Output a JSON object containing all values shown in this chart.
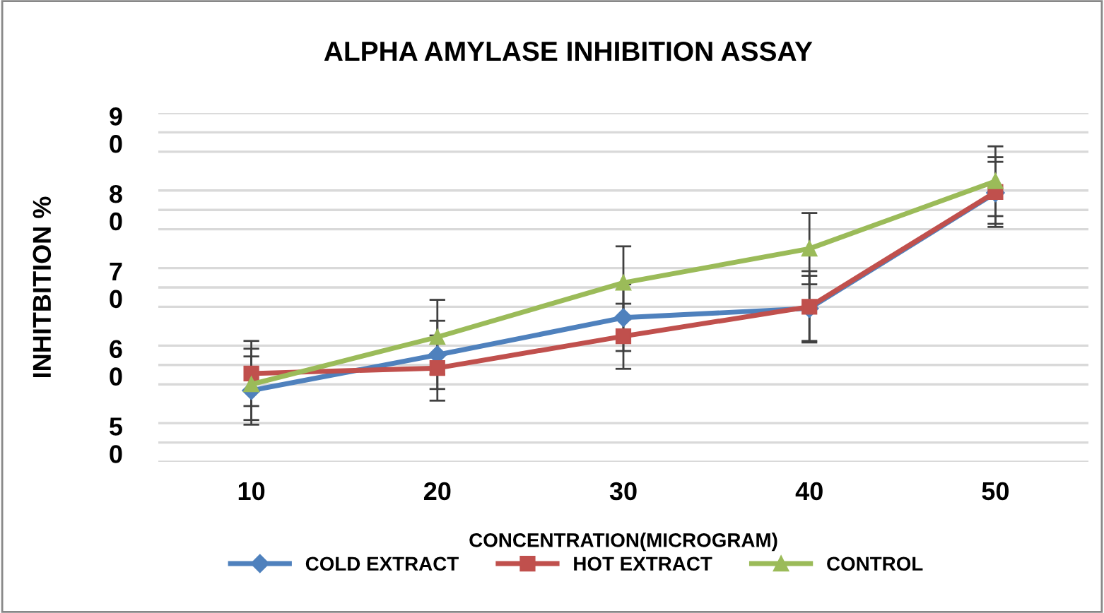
{
  "chart_data": {
    "type": "line",
    "title": "ALPHA AMYLASE INHIBITION ASSAY",
    "xlabel": "CONCENTRATION(MICROGRAM)",
    "ylabel": "INHITBITION %",
    "categories": [
      "10",
      "20",
      "30",
      "40",
      "50"
    ],
    "ylim": [
      47.5,
      92.5
    ],
    "yticks": [
      {
        "value": 92.5,
        "label": null
      },
      90,
      {
        "value": 87.5,
        "label": null
      },
      {
        "value": 82.5,
        "label": null
      },
      80,
      {
        "value": 77.5,
        "label": null
      },
      {
        "value": 72.5,
        "label": null
      },
      70,
      {
        "value": 67.5,
        "label": null
      },
      {
        "value": 62.5,
        "label": null
      },
      60,
      {
        "value": 57.5,
        "label": null
      },
      {
        "value": 52.5,
        "label": null
      },
      50,
      {
        "value": 47.5,
        "label": null
      }
    ],
    "grid": "y",
    "legend": "bottom",
    "series": [
      {
        "name": "COLD EXTRACT",
        "color": "#4f81bd",
        "marker": "diamond",
        "values": [
          56.7,
          61.3,
          66.1,
          67.3,
          82.2
        ],
        "errors": [
          4.4,
          4.4,
          4.3,
          4.2,
          4.0
        ]
      },
      {
        "name": "HOT EXTRACT",
        "color": "#c0504d",
        "marker": "square",
        "values": [
          58.9,
          59.6,
          63.7,
          67.5,
          82.3
        ],
        "errors": [
          4.2,
          4.2,
          4.2,
          4.6,
          4.5
        ]
      },
      {
        "name": "CONTROL",
        "color": "#9bbb59",
        "marker": "triangle",
        "values": [
          57.5,
          63.6,
          70.6,
          75.0,
          83.7
        ],
        "errors": [
          4.6,
          4.8,
          4.7,
          4.6,
          4.5
        ]
      }
    ]
  }
}
